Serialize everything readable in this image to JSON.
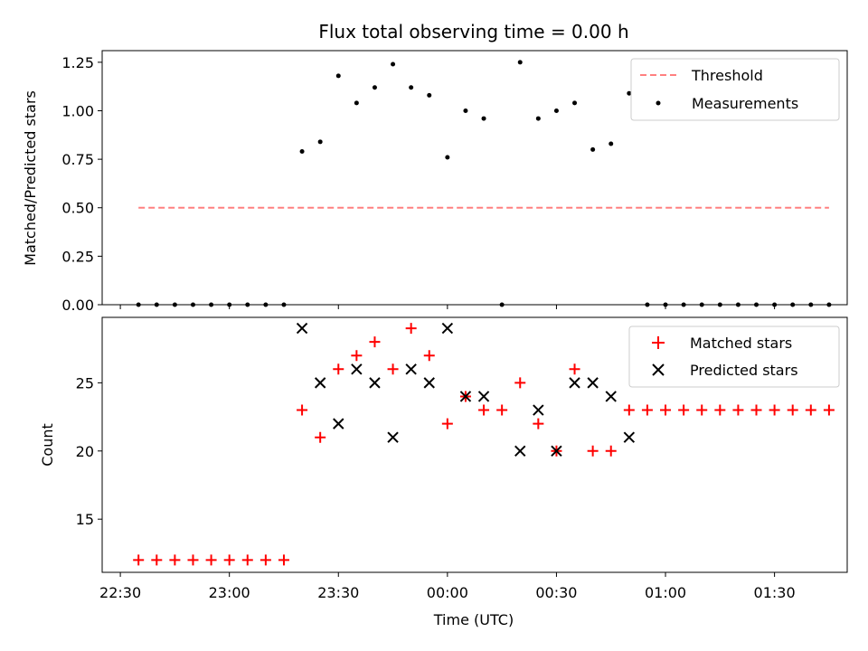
{
  "chart_data": [
    {
      "type": "scatter",
      "title": "Flux total observing time = 0.00 h",
      "xlabel": "",
      "ylabel": "Matched/Predicted stars",
      "ylim": [
        0,
        1.31
      ],
      "yticks": [
        "0.00",
        "0.25",
        "0.50",
        "0.75",
        "1.00",
        "1.25"
      ],
      "legend": "top-right",
      "series": [
        {
          "name": "Threshold",
          "style": "dashed-line",
          "color": "#ff8080",
          "x": [
            "22:35",
            "01:45"
          ],
          "y": [
            0.5,
            0.5
          ]
        },
        {
          "name": "Measurements",
          "style": "dot",
          "color": "#000000",
          "x": [
            "22:35",
            "22:40",
            "22:45",
            "22:50",
            "22:55",
            "23:00",
            "23:05",
            "23:10",
            "23:15",
            "23:20",
            "23:25",
            "23:30",
            "23:35",
            "23:40",
            "23:45",
            "23:50",
            "23:55",
            "00:00",
            "00:05",
            "00:10",
            "00:15",
            "00:20",
            "00:25",
            "00:30",
            "00:35",
            "00:40",
            "00:45",
            "00:50",
            "00:55",
            "01:00",
            "01:05",
            "01:10",
            "01:15",
            "01:20",
            "01:25",
            "01:30",
            "01:35",
            "01:40",
            "01:45"
          ],
          "y": [
            0,
            0,
            0,
            0,
            0,
            0,
            0,
            0,
            0,
            0.79,
            0.84,
            1.18,
            1.04,
            1.12,
            1.24,
            1.12,
            1.08,
            0.76,
            1.0,
            0.96,
            0,
            1.25,
            0.96,
            1.0,
            1.04,
            0.8,
            0.83,
            1.09,
            0,
            0,
            0,
            0,
            0,
            0,
            0,
            0,
            0,
            0,
            0
          ]
        }
      ]
    },
    {
      "type": "scatter",
      "xlabel": "Time (UTC)",
      "ylabel": "Count",
      "ylim": [
        11.1,
        29.8
      ],
      "yticks": [
        "15",
        "20",
        "25"
      ],
      "xticks": [
        "22:30",
        "23:00",
        "23:30",
        "00:00",
        "00:30",
        "01:00",
        "01:30"
      ],
      "legend": "top-right",
      "series": [
        {
          "name": "Matched stars",
          "marker": "plus",
          "color": "#ff0000",
          "x": [
            "22:35",
            "22:40",
            "22:45",
            "22:50",
            "22:55",
            "23:00",
            "23:05",
            "23:10",
            "23:15",
            "23:20",
            "23:25",
            "23:30",
            "23:35",
            "23:40",
            "23:45",
            "23:50",
            "23:55",
            "00:00",
            "00:05",
            "00:10",
            "00:15",
            "00:20",
            "00:25",
            "00:30",
            "00:35",
            "00:40",
            "00:45",
            "00:50",
            "00:55",
            "01:00",
            "01:05",
            "01:10",
            "01:15",
            "01:20",
            "01:25",
            "01:30",
            "01:35",
            "01:40",
            "01:45"
          ],
          "y": [
            12,
            12,
            12,
            12,
            12,
            12,
            12,
            12,
            12,
            23,
            21,
            26,
            27,
            28,
            26,
            29,
            27,
            22,
            24,
            23,
            23,
            25,
            22,
            20,
            26,
            20,
            20,
            23,
            23,
            23,
            23,
            23,
            23,
            23,
            23,
            23,
            23,
            23,
            23
          ]
        },
        {
          "name": "Predicted stars",
          "marker": "x",
          "color": "#000000",
          "x": [
            "23:20",
            "23:25",
            "23:30",
            "23:35",
            "23:40",
            "23:45",
            "23:50",
            "23:55",
            "00:00",
            "00:05",
            "00:10",
            "00:20",
            "00:25",
            "00:30",
            "00:35",
            "00:40",
            "00:45",
            "00:50"
          ],
          "y": [
            29,
            25,
            22,
            26,
            25,
            21,
            26,
            25,
            29,
            24,
            24,
            20,
            23,
            20,
            25,
            25,
            24,
            21
          ]
        }
      ]
    }
  ]
}
